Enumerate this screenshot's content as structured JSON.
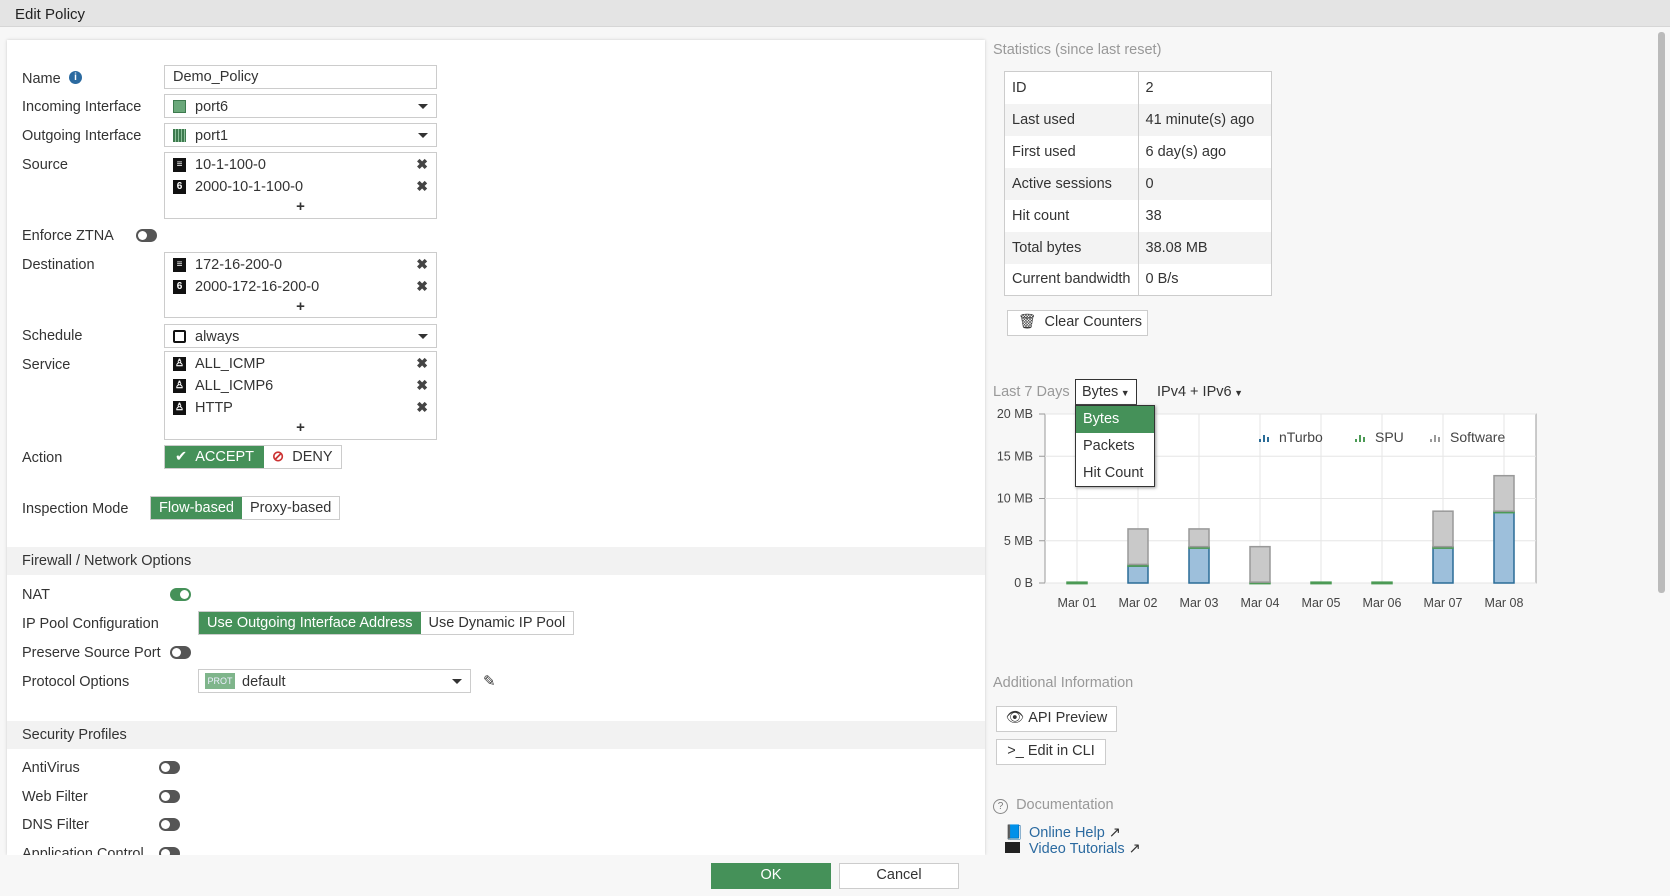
{
  "window": {
    "title": "Edit Policy"
  },
  "form": {
    "name": {
      "label": "Name",
      "value": "Demo_Policy"
    },
    "incoming": {
      "label": "Incoming Interface",
      "value": "port6"
    },
    "outgoing": {
      "label": "Outgoing Interface",
      "value": "port1"
    },
    "source": {
      "label": "Source",
      "items": [
        "10-1-100-0",
        "2000-10-1-100-0"
      ]
    },
    "ztna": {
      "label": "Enforce ZTNA",
      "enabled": false
    },
    "destination": {
      "label": "Destination",
      "items": [
        "172-16-200-0",
        "2000-172-16-200-0"
      ]
    },
    "schedule": {
      "label": "Schedule",
      "value": "always"
    },
    "service": {
      "label": "Service",
      "items": [
        "ALL_ICMP",
        "ALL_ICMP6",
        "HTTP"
      ]
    },
    "action": {
      "label": "Action",
      "accept": "ACCEPT",
      "deny": "DENY",
      "selected": "ACCEPT"
    },
    "inspection": {
      "label": "Inspection Mode",
      "flow": "Flow-based",
      "proxy": "Proxy-based",
      "selected": "Flow-based"
    },
    "add_symbol": "+",
    "remove_symbol": "✖",
    "ipv6_badge": "6"
  },
  "firewall": {
    "title": "Firewall / Network Options",
    "nat": {
      "label": "NAT",
      "enabled": true
    },
    "ippool": {
      "label": "IP Pool Configuration",
      "opt1": "Use Outgoing Interface Address",
      "opt2": "Use Dynamic IP Pool",
      "selected": "Use Outgoing Interface Address"
    },
    "preserve": {
      "label": "Preserve Source Port",
      "enabled": false
    },
    "protocol": {
      "label": "Protocol Options",
      "badge": "PROT",
      "value": "default"
    }
  },
  "security": {
    "title": "Security Profiles",
    "items": [
      {
        "label": "AntiVirus",
        "enabled": false
      },
      {
        "label": "Web Filter",
        "enabled": false
      },
      {
        "label": "DNS Filter",
        "enabled": false
      },
      {
        "label": "Application Control",
        "enabled": false
      }
    ]
  },
  "footer": {
    "ok": "OK",
    "cancel": "Cancel"
  },
  "stats": {
    "title": "Statistics (since last reset)",
    "rows": [
      [
        "ID",
        "2"
      ],
      [
        "Last used",
        "41 minute(s) ago"
      ],
      [
        "First used",
        "6 day(s) ago"
      ],
      [
        "Active sessions",
        "0"
      ],
      [
        "Hit count",
        "38"
      ],
      [
        "Total bytes",
        "38.08 MB"
      ],
      [
        "Current bandwidth",
        "0 B/s"
      ]
    ],
    "clear": "Clear Counters"
  },
  "chart_controls": {
    "period": "Last 7 Days",
    "metric": "Bytes",
    "ipver": "IPv4 + IPv6",
    "metric_options": [
      "Bytes",
      "Packets",
      "Hit Count"
    ]
  },
  "chart_data": {
    "type": "bar",
    "stacked": true,
    "categories": [
      "Mar 01",
      "Mar 02",
      "Mar 03",
      "Mar 04",
      "Mar 05",
      "Mar 06",
      "Mar 07",
      "Mar 08"
    ],
    "series": [
      {
        "name": "nTurbo",
        "color": "#9dbfdb",
        "values": [
          0,
          2.0,
          4.2,
          0,
          0,
          0,
          4.2,
          8.4
        ]
      },
      {
        "name": "SPU",
        "color": "#5aa05e",
        "values": [
          0.1,
          0.2,
          0.1,
          0.1,
          0.1,
          0.1,
          0.1,
          0.1
        ]
      },
      {
        "name": "Software",
        "color": "#c9c9c9",
        "values": [
          0,
          4.2,
          2.1,
          4.2,
          0,
          0,
          4.2,
          4.2
        ]
      }
    ],
    "yticks": [
      "0 B",
      "5 MB",
      "10 MB",
      "15 MB",
      "20 MB"
    ],
    "ylim": [
      0,
      20
    ],
    "yunit": "MB",
    "grid": true,
    "legend": "top-right"
  },
  "additional": {
    "title": "Additional Information",
    "api": "API Preview",
    "cli": "Edit in CLI"
  },
  "docs": {
    "title": "Documentation",
    "help": "Online Help",
    "video": "Video Tutorials"
  },
  "colors": {
    "accent": "#459159",
    "link": "#2b6aa0"
  }
}
